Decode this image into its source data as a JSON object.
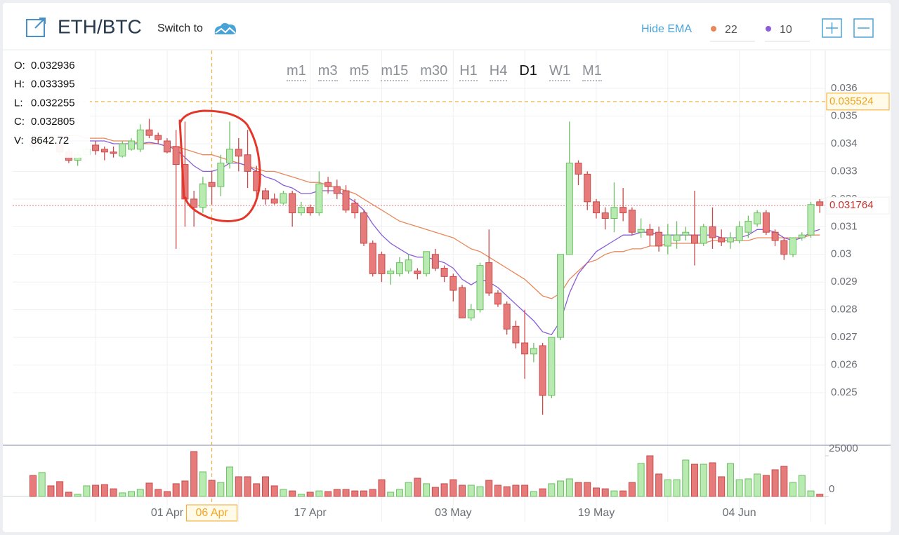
{
  "header": {
    "symbol": "ETH/BTC",
    "switch_label": "Switch to",
    "ema_toggle": "Hide EMA"
  },
  "timeframes": [
    "m1",
    "m3",
    "m5",
    "m15",
    "m30",
    "H1",
    "H4",
    "D1",
    "W1",
    "M1"
  ],
  "active_timeframe": 7,
  "tooltip": [
    {
      "label": "O:",
      "value": 0.032936
    },
    {
      "label": "H:",
      "value": 0.033395
    },
    {
      "label": "L:",
      "value": 0.032255
    },
    {
      "label": "C:",
      "value": 0.032805
    },
    {
      "label": "V:",
      "value": 8642.72
    }
  ],
  "chart_data": {
    "type": "candlestick",
    "categories": [
      null,
      null,
      null,
      null,
      null,
      null,
      null,
      null,
      null,
      null,
      null,
      null,
      null,
      null,
      null,
      "01 Apr",
      null,
      null,
      null,
      null,
      "06 Apr",
      null,
      null,
      null,
      null,
      null,
      null,
      null,
      null,
      null,
      null,
      "17 Apr",
      null,
      null,
      null,
      null,
      null,
      null,
      null,
      null,
      null,
      null,
      null,
      null,
      null,
      null,
      null,
      "03 May",
      null,
      null,
      null,
      null,
      null,
      null,
      null,
      null,
      null,
      null,
      null,
      null,
      null,
      null,
      null,
      "19 May",
      null,
      null,
      null,
      null,
      null,
      null,
      null,
      null,
      null,
      null,
      null,
      null,
      null,
      null,
      null,
      "04 Jun",
      null,
      null,
      null,
      null,
      null,
      null,
      null,
      null,
      null
    ],
    "open": [
      0.034,
      0.0339,
      0.0341,
      0.034,
      0.0337,
      0.0334,
      0.0336,
      0.03395,
      0.0338,
      0.0337,
      0.03355,
      0.0338,
      0.0338,
      0.0345,
      0.0343,
      0.0341,
      0.0339,
      0.03325,
      0.032,
      0.0317,
      0.0326,
      0.03245,
      0.0333,
      0.0338,
      0.0336,
      0.033,
      0.0323,
      0.032,
      0.03185,
      0.0322,
      0.0315,
      0.0317,
      0.0315,
      0.0326,
      0.03245,
      0.0323,
      0.03185,
      0.0315,
      0.0304,
      0.03,
      0.0293,
      0.0293,
      0.0294,
      0.0294,
      0.0293,
      0.03,
      0.0295,
      0.0292,
      0.0288,
      0.0277,
      0.028,
      0.0297,
      0.0286,
      0.0282,
      0.0274,
      0.0268,
      0.0264,
      0.0267,
      0.0249,
      0.027,
      0.03,
      0.0333,
      0.0329,
      0.0319,
      0.0315,
      0.0313,
      0.0317,
      0.0316,
      0.0308,
      0.0309,
      0.0308,
      0.0303,
      0.0305,
      0.0307,
      0.0307,
      0.0304,
      0.031,
      0.0306,
      0.03045,
      0.0305,
      0.0308,
      0.0311,
      0.0315,
      0.0308,
      0.0305,
      0.03,
      0.0306,
      0.0307,
      0.0319
    ],
    "high": [
      0.0342,
      0.0343,
      0.0342,
      0.0341,
      0.0338,
      0.0337,
      0.0339,
      0.0341,
      0.0339,
      0.0339,
      0.0341,
      0.0342,
      0.0347,
      0.0349,
      0.0344,
      0.0342,
      0.0345,
      0.0348,
      0.0323,
      0.0328,
      0.033,
      0.0336,
      0.0348,
      0.0342,
      0.0345,
      0.0332,
      0.0324,
      0.0322,
      0.0323,
      0.0323,
      0.0319,
      0.0318,
      0.033,
      0.0328,
      0.0327,
      0.0325,
      0.032,
      0.0316,
      0.0305,
      0.0301,
      0.0295,
      0.0299,
      0.03,
      0.0295,
      0.0301,
      0.0302,
      0.0296,
      0.0293,
      0.0289,
      0.0282,
      0.0297,
      0.0309,
      0.0287,
      0.0283,
      0.0276,
      0.028,
      0.0268,
      0.0268,
      0.027,
      0.03,
      0.0348,
      0.0334,
      0.033,
      0.032,
      0.0317,
      0.0326,
      0.0324,
      0.0317,
      0.0313,
      0.0311,
      0.031,
      0.0311,
      0.0312,
      0.031,
      0.0323,
      0.0311,
      0.0317,
      0.0309,
      0.0308,
      0.0312,
      0.0314,
      0.0316,
      0.0316,
      0.0309,
      0.0306,
      0.0306,
      0.0308,
      0.0319,
      0.032
    ],
    "low": [
      0.0337,
      0.0338,
      0.0339,
      0.0336,
      0.0333,
      0.0332,
      0.0335,
      0.0336,
      0.0334,
      0.0335,
      0.0335,
      0.03375,
      0.0337,
      0.0342,
      0.034,
      0.03365,
      0.0302,
      0.031,
      0.031,
      0.0315,
      0.0318,
      0.0321,
      0.0331,
      0.033,
      0.0324,
      0.032,
      0.0318,
      0.0318,
      0.0318,
      0.031,
      0.0314,
      0.0314,
      0.0314,
      0.0322,
      0.032,
      0.0315,
      0.0313,
      0.0303,
      0.0292,
      0.029,
      0.0289,
      0.0292,
      0.0293,
      0.0291,
      0.0292,
      0.0294,
      0.029,
      0.0283,
      0.0277,
      0.0276,
      0.0279,
      0.0285,
      0.0281,
      0.0271,
      0.0266,
      0.0255,
      0.0261,
      0.0242,
      0.0248,
      0.0269,
      0.03,
      0.0325,
      0.0316,
      0.0313,
      0.0309,
      0.0308,
      0.0312,
      0.0307,
      0.0306,
      0.0303,
      0.0301,
      0.03,
      0.0302,
      0.0305,
      0.0296,
      0.0303,
      0.0302,
      0.0303,
      0.0302,
      0.0304,
      0.0306,
      0.031,
      0.0307,
      0.0303,
      0.0298,
      0.0299,
      0.0305,
      0.0306,
      0.0315
    ],
    "close": [
      0.0339,
      0.0341,
      0.034,
      0.0337,
      0.0334,
      0.0336,
      0.0338,
      0.03375,
      0.0337,
      0.03365,
      0.034,
      0.0341,
      0.0345,
      0.0343,
      0.03415,
      0.0337,
      0.03325,
      0.032,
      0.0317,
      0.03255,
      0.03245,
      0.0333,
      0.0338,
      0.03355,
      0.033,
      0.0323,
      0.032,
      0.03185,
      0.0322,
      0.0315,
      0.0317,
      0.0315,
      0.03255,
      0.03245,
      0.0322,
      0.0316,
      0.0315,
      0.0304,
      0.0293,
      0.0293,
      0.0294,
      0.0297,
      0.0298,
      0.0293,
      0.0301,
      0.0295,
      0.0292,
      0.0287,
      0.0277,
      0.028,
      0.0296,
      0.0286,
      0.0282,
      0.0273,
      0.0268,
      0.0264,
      0.0266,
      0.0249,
      0.027,
      0.03,
      0.0333,
      0.0329,
      0.0319,
      0.0315,
      0.0313,
      0.0317,
      0.0315,
      0.0308,
      0.0309,
      0.0307,
      0.0303,
      0.0307,
      0.0307,
      0.0308,
      0.0304,
      0.031,
      0.0306,
      0.03045,
      0.0306,
      0.031,
      0.0312,
      0.0315,
      0.0308,
      0.0305,
      0.03,
      0.0306,
      0.0307,
      0.0318,
      0.031764
    ],
    "volume": [
      12900,
      14700,
      6500,
      9100,
      2600,
      1300,
      6500,
      6900,
      7300,
      4700,
      2200,
      3000,
      4300,
      8200,
      4300,
      3000,
      7800,
      9500,
      27600,
      15100,
      9900,
      8600,
      18100,
      12100,
      12100,
      7800,
      12100,
      6500,
      4300,
      3400,
      1300,
      2600,
      3400,
      3000,
      4300,
      4300,
      3400,
      3400,
      4300,
      10300,
      2600,
      4300,
      8600,
      11200,
      7800,
      5600,
      7800,
      10300,
      6900,
      6900,
      6000,
      9900,
      6900,
      6000,
      6900,
      6900,
      3000,
      4700,
      7800,
      9500,
      10800,
      8600,
      8600,
      5200,
      4700,
      3400,
      3400,
      8600,
      20300,
      25000,
      13800,
      10300,
      10300,
      22400,
      19800,
      19800,
      20700,
      12100,
      20300,
      10300,
      10800,
      13800,
      12900,
      16400,
      18500,
      8600,
      12900,
      3400,
      1300
    ],
    "ema": [
      {
        "name": "22",
        "color": "#e8875a",
        "values": [
          0.0343,
          0.0343,
          0.0343,
          0.0343,
          0.0343,
          0.0343,
          0.0342,
          0.0342,
          0.0342,
          0.0341,
          0.0341,
          0.0341,
          0.034,
          0.034,
          0.034,
          0.0339,
          0.0339,
          0.0338,
          0.0337,
          0.0336,
          0.0336,
          0.0335,
          0.0334,
          0.0333,
          0.0332,
          0.0331,
          0.033,
          0.033,
          0.0329,
          0.0328,
          0.0327,
          0.0326,
          0.0326,
          0.0325,
          0.0324,
          0.0323,
          0.0322,
          0.032,
          0.0318,
          0.0316,
          0.0314,
          0.0312,
          0.0311,
          0.031,
          0.0309,
          0.0308,
          0.0307,
          0.0306,
          0.0304,
          0.0302,
          0.0301,
          0.0299,
          0.0297,
          0.0295,
          0.0293,
          0.0291,
          0.0288,
          0.0285,
          0.0284,
          0.0286,
          0.0291,
          0.0294,
          0.0297,
          0.0298,
          0.03,
          0.0301,
          0.0301,
          0.0302,
          0.0302,
          0.0303,
          0.0303,
          0.0304,
          0.0304,
          0.0304,
          0.0304,
          0.0304,
          0.0305,
          0.0305,
          0.0305,
          0.0305,
          0.0305,
          0.0306,
          0.0306,
          0.0306,
          0.0306,
          0.0306,
          0.0306,
          0.0307,
          0.0307
        ]
      },
      {
        "name": "10",
        "color": "#8a5cd8",
        "values": [
          0.034,
          0.034,
          0.034,
          0.034,
          0.0341,
          0.0341,
          0.0341,
          0.0341,
          0.0341,
          0.034,
          0.034,
          0.034,
          0.034,
          0.03405,
          0.034,
          0.0339,
          0.0338,
          0.0335,
          0.0332,
          0.033,
          0.033,
          0.0331,
          0.0333,
          0.0333,
          0.0332,
          0.033,
          0.0328,
          0.0327,
          0.0325,
          0.0324,
          0.0322,
          0.0322,
          0.0323,
          0.0323,
          0.0323,
          0.0321,
          0.0319,
          0.0316,
          0.0311,
          0.0307,
          0.0304,
          0.0302,
          0.03,
          0.0299,
          0.0299,
          0.0298,
          0.0297,
          0.0295,
          0.0291,
          0.0289,
          0.0291,
          0.029,
          0.0288,
          0.0285,
          0.0282,
          0.0279,
          0.0276,
          0.0272,
          0.0271,
          0.0276,
          0.0286,
          0.0293,
          0.0297,
          0.0301,
          0.0303,
          0.0305,
          0.0307,
          0.0307,
          0.0308,
          0.0308,
          0.0307,
          0.0307,
          0.0307,
          0.0307,
          0.0307,
          0.0307,
          0.0307,
          0.0306,
          0.0306,
          0.0306,
          0.0307,
          0.0309,
          0.0309,
          0.0308,
          0.0306,
          0.0305,
          0.0306,
          0.0308,
          0.0309
        ]
      }
    ],
    "up_color": "#b9eab2",
    "down_color": "#e57b7b",
    "ylim": [
      0.0231,
      0.03737
    ],
    "yticks": [
      0.025,
      0.026,
      0.027,
      0.028,
      0.029,
      0.03,
      0.031,
      0.032,
      0.033,
      0.034,
      0.035,
      0.036
    ],
    "vlim": [
      0,
      25000
    ],
    "vticks": [
      0,
      25000
    ],
    "last_price": 0.031764,
    "crosshair": {
      "index": 20,
      "price": 0.035524
    },
    "grid": true
  }
}
